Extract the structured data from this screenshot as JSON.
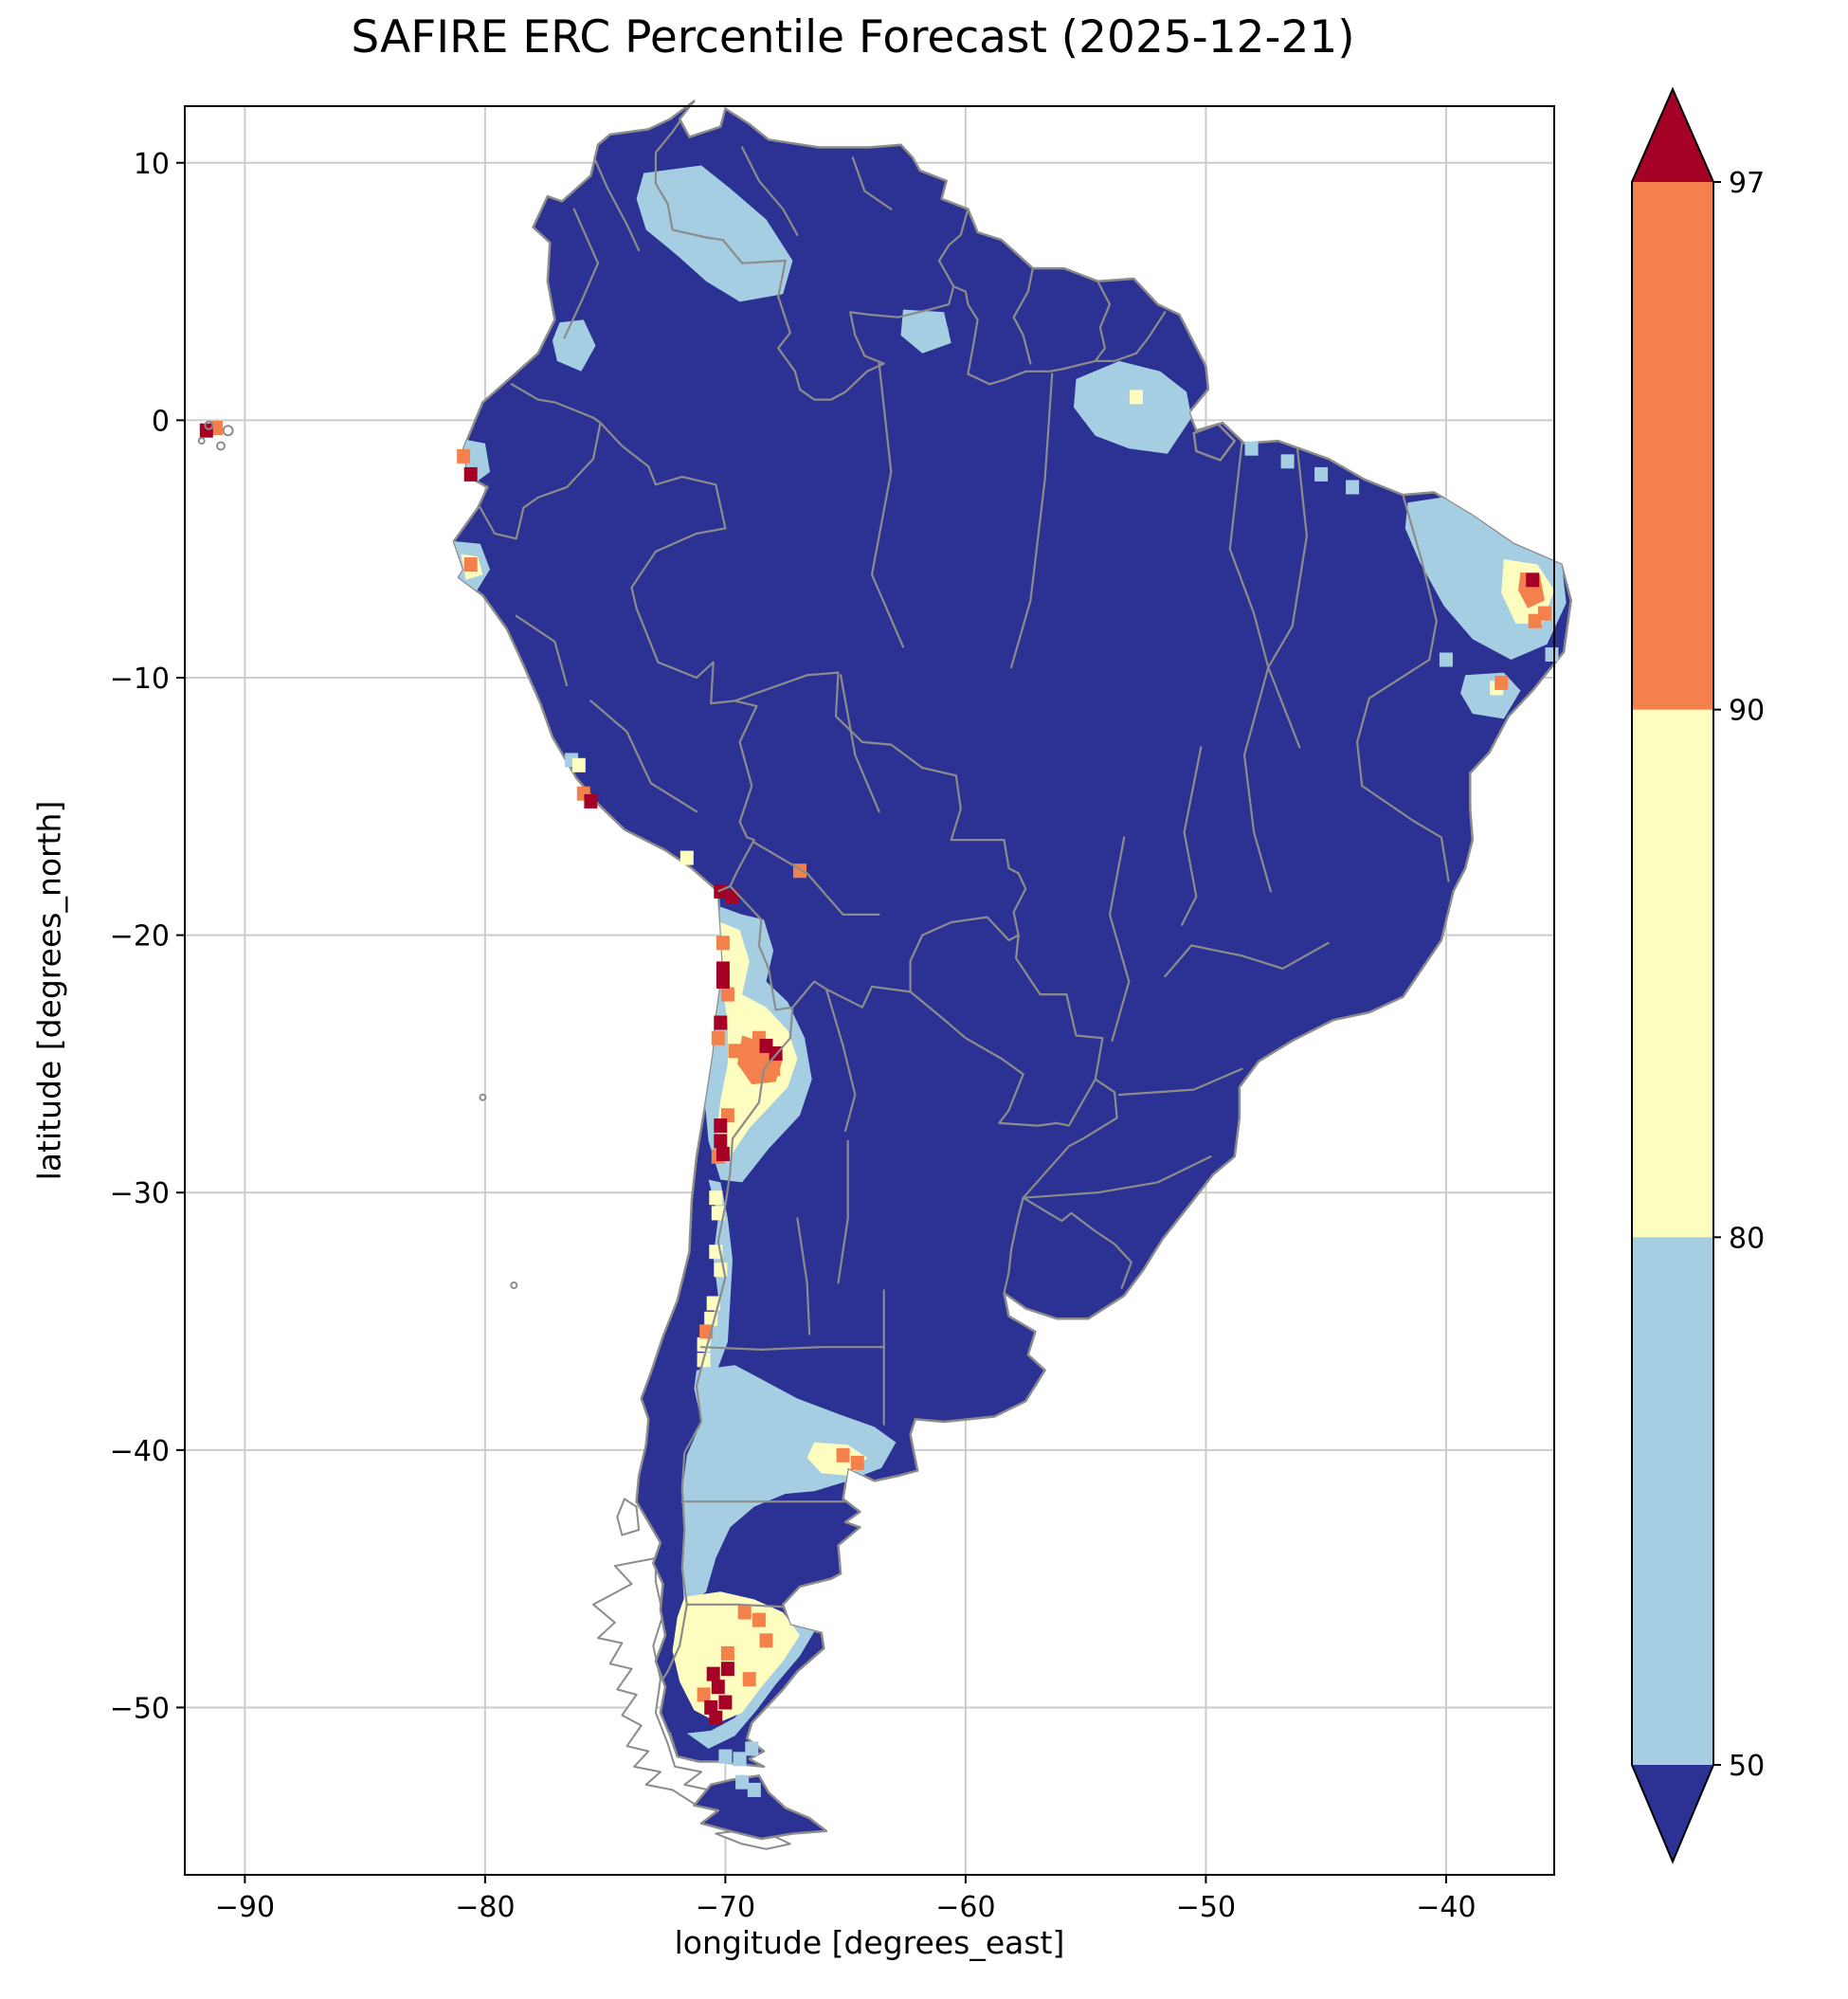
{
  "title": "SAFIRE ERC Percentile Forecast (2025-12-21)",
  "axes": {
    "xlabel": "longitude [degrees_east]",
    "ylabel": "latitude [degrees_north]",
    "x_ticks": [
      -90,
      -80,
      -70,
      -60,
      -50,
      -40
    ],
    "x_tick_labels": [
      "−90",
      "−80",
      "−70",
      "−60",
      "−50",
      "−40"
    ],
    "y_ticks": [
      10,
      0,
      -10,
      -20,
      -30,
      -40,
      -50
    ],
    "y_tick_labels": [
      "10",
      "0",
      "−10",
      "−20",
      "−30",
      "−40",
      "−50"
    ],
    "xlim": [
      -92.5,
      -35.5
    ],
    "ylim": [
      -56.5,
      12.2
    ],
    "grid": true
  },
  "colorbar": {
    "levels": [
      97,
      90,
      80,
      50
    ],
    "labels": [
      "97",
      "90",
      "80",
      "50"
    ],
    "orientation": "vertical-right",
    "extend": "both",
    "colors": {
      "over": "#a50026",
      "bin_90_97": "#f4814c",
      "bin_80_90": "#fefdc0",
      "bin_50_80": "#a6cee3",
      "under": "#2b3293"
    }
  },
  "map_colors": {
    "land": "#2b3293",
    "ocean": "#ffffff",
    "coast_border": "#8c8c8c",
    "grid": "#cccccc",
    "frame": "#000000"
  },
  "chart_data": {
    "type": "heatmap",
    "title": "SAFIRE ERC Percentile Forecast (2025-12-21)",
    "xlabel": "longitude [degrees_east]",
    "ylabel": "latitude [degrees_north]",
    "xlim": [
      -92.5,
      -35.5
    ],
    "ylim": [
      -56.5,
      12.2
    ],
    "units": "ERC percentile",
    "legend_position": "right",
    "bins": [
      {
        "range": "<50",
        "color": "#2b3293",
        "note": "below 50th percentile — most of the continent"
      },
      {
        "range": "50-80",
        "color": "#a6cee3"
      },
      {
        "range": "80-90",
        "color": "#fefdc0"
      },
      {
        "range": "90-97",
        "color": "#f4814c"
      },
      {
        "range": ">97",
        "color": "#a50026"
      }
    ],
    "regions": [
      {
        "name": "venezuela-llanos",
        "bin": "50-80",
        "polygon": [
          [
            -73.4,
            9.6
          ],
          [
            -71.0,
            9.9
          ],
          [
            -69.8,
            9.0
          ],
          [
            -68.3,
            7.8
          ],
          [
            -67.2,
            6.2
          ],
          [
            -67.6,
            4.9
          ],
          [
            -69.4,
            4.6
          ],
          [
            -70.8,
            5.4
          ],
          [
            -72.0,
            6.4
          ],
          [
            -73.3,
            7.4
          ],
          [
            -73.7,
            8.6
          ]
        ]
      },
      {
        "name": "sw-colombia",
        "bin": "50-80",
        "polygon": [
          [
            -76.9,
            3.8
          ],
          [
            -75.9,
            3.9
          ],
          [
            -75.4,
            2.9
          ],
          [
            -76.0,
            1.9
          ],
          [
            -77.0,
            2.3
          ],
          [
            -77.2,
            3.1
          ]
        ]
      },
      {
        "name": "roraima-guyana",
        "bin": "50-80",
        "polygon": [
          [
            -62.6,
            4.3
          ],
          [
            -60.9,
            4.2
          ],
          [
            -60.6,
            3.0
          ],
          [
            -61.8,
            2.6
          ],
          [
            -62.7,
            3.3
          ]
        ]
      },
      {
        "name": "amapa-amazon-mouth",
        "bin": "50-80",
        "polygon": [
          [
            -55.4,
            1.6
          ],
          [
            -53.6,
            2.3
          ],
          [
            -51.9,
            1.9
          ],
          [
            -50.8,
            1.1
          ],
          [
            -50.6,
            0.1
          ],
          [
            -51.6,
            -1.3
          ],
          [
            -53.2,
            -1.1
          ],
          [
            -54.6,
            -0.6
          ],
          [
            -55.5,
            0.5
          ]
        ]
      },
      {
        "name": "ne-brazil",
        "bin": "50-80",
        "polygon": [
          [
            -41.6,
            -3.2
          ],
          [
            -40.2,
            -3.0
          ],
          [
            -38.5,
            -3.6
          ],
          [
            -36.8,
            -4.8
          ],
          [
            -35.2,
            -5.5
          ],
          [
            -35.0,
            -7.1
          ],
          [
            -35.8,
            -8.7
          ],
          [
            -37.3,
            -9.3
          ],
          [
            -38.9,
            -8.5
          ],
          [
            -40.1,
            -7.2
          ],
          [
            -41.1,
            -5.5
          ],
          [
            -41.7,
            -4.2
          ]
        ]
      },
      {
        "name": "ne-brazil-high",
        "bin": "80-90",
        "polygon": [
          [
            -37.6,
            -5.4
          ],
          [
            -36.2,
            -5.6
          ],
          [
            -35.5,
            -6.6
          ],
          [
            -36.0,
            -7.9
          ],
          [
            -37.1,
            -7.9
          ],
          [
            -37.7,
            -6.7
          ]
        ]
      },
      {
        "name": "ne-brazil-severe",
        "bin": "90-97",
        "polygon": [
          [
            -36.9,
            -5.9
          ],
          [
            -36.1,
            -6.0
          ],
          [
            -35.9,
            -7.0
          ],
          [
            -36.6,
            -7.3
          ],
          [
            -37.0,
            -6.6
          ]
        ]
      },
      {
        "name": "sergipe-bahia",
        "bin": "50-80",
        "polygon": [
          [
            -39.2,
            -9.9
          ],
          [
            -37.6,
            -9.8
          ],
          [
            -36.9,
            -10.5
          ],
          [
            -37.6,
            -11.6
          ],
          [
            -38.9,
            -11.4
          ],
          [
            -39.4,
            -10.6
          ]
        ]
      },
      {
        "name": "ecuador-coast",
        "bin": "50-80",
        "polygon": [
          [
            -81.1,
            -0.7
          ],
          [
            -80.0,
            -0.9
          ],
          [
            -79.8,
            -2.0
          ],
          [
            -80.5,
            -2.5
          ],
          [
            -81.1,
            -1.9
          ]
        ]
      },
      {
        "name": "nw-peru-coast",
        "bin": "50-80",
        "polygon": [
          [
            -81.3,
            -4.7
          ],
          [
            -80.2,
            -4.8
          ],
          [
            -79.8,
            -5.8
          ],
          [
            -80.4,
            -6.7
          ],
          [
            -81.2,
            -6.2
          ]
        ]
      },
      {
        "name": "nw-peru-high",
        "bin": "80-90",
        "polygon": [
          [
            -81.0,
            -5.2
          ],
          [
            -80.3,
            -5.3
          ],
          [
            -80.1,
            -6.0
          ],
          [
            -80.8,
            -6.2
          ]
        ]
      },
      {
        "name": "atacama-envelope",
        "bin": "50-80",
        "polygon": [
          [
            -70.2,
            -18.9
          ],
          [
            -69.3,
            -19.2
          ],
          [
            -68.4,
            -19.4
          ],
          [
            -68.0,
            -20.6
          ],
          [
            -68.3,
            -21.8
          ],
          [
            -67.4,
            -22.6
          ],
          [
            -66.7,
            -24.0
          ],
          [
            -66.4,
            -25.6
          ],
          [
            -66.9,
            -27.0
          ],
          [
            -68.2,
            -28.3
          ],
          [
            -69.3,
            -29.6
          ],
          [
            -70.2,
            -29.5
          ],
          [
            -70.7,
            -28.0
          ],
          [
            -70.9,
            -26.0
          ],
          [
            -70.8,
            -24.0
          ],
          [
            -70.7,
            -22.0
          ],
          [
            -70.6,
            -20.2
          ]
        ]
      },
      {
        "name": "atacama-yellow",
        "bin": "80-90",
        "polygon": [
          [
            -70.2,
            -19.5
          ],
          [
            -69.4,
            -19.8
          ],
          [
            -69.0,
            -21.0
          ],
          [
            -69.3,
            -22.3
          ],
          [
            -68.3,
            -22.8
          ],
          [
            -67.4,
            -23.7
          ],
          [
            -67.0,
            -24.8
          ],
          [
            -67.4,
            -25.9
          ],
          [
            -68.2,
            -26.7
          ],
          [
            -69.0,
            -27.5
          ],
          [
            -69.8,
            -28.6
          ],
          [
            -70.4,
            -28.0
          ],
          [
            -70.2,
            -26.4
          ],
          [
            -69.9,
            -25.0
          ],
          [
            -69.9,
            -23.5
          ],
          [
            -70.1,
            -22.0
          ],
          [
            -70.3,
            -20.5
          ]
        ]
      },
      {
        "name": "atacama-orange",
        "bin": "90-97",
        "polygon": [
          [
            -69.3,
            -23.9
          ],
          [
            -68.3,
            -24.2
          ],
          [
            -67.6,
            -24.8
          ],
          [
            -67.9,
            -25.7
          ],
          [
            -68.9,
            -25.8
          ],
          [
            -69.5,
            -25.0
          ]
        ]
      },
      {
        "name": "chile-central-strip",
        "bin": "50-80",
        "polygon": [
          [
            -70.7,
            -29.5
          ],
          [
            -70.3,
            -31.0
          ],
          [
            -70.5,
            -32.5
          ],
          [
            -70.3,
            -34.0
          ],
          [
            -70.7,
            -35.5
          ],
          [
            -71.1,
            -37.0
          ],
          [
            -70.5,
            -37.3
          ],
          [
            -69.9,
            -35.8
          ],
          [
            -69.8,
            -34.2
          ],
          [
            -69.7,
            -32.6
          ],
          [
            -69.9,
            -31.0
          ],
          [
            -70.2,
            -29.6
          ]
        ]
      },
      {
        "name": "patagonia-north",
        "bin": "50-80",
        "polygon": [
          [
            -71.2,
            -36.9
          ],
          [
            -69.6,
            -36.7
          ],
          [
            -68.4,
            -37.3
          ],
          [
            -67.0,
            -38.0
          ],
          [
            -65.3,
            -38.6
          ],
          [
            -63.8,
            -39.1
          ],
          [
            -62.9,
            -39.7
          ],
          [
            -63.5,
            -40.7
          ],
          [
            -64.9,
            -41.2
          ],
          [
            -66.3,
            -41.6
          ],
          [
            -67.5,
            -41.7
          ],
          [
            -68.8,
            -42.2
          ],
          [
            -69.8,
            -43.0
          ],
          [
            -70.4,
            -44.2
          ],
          [
            -70.8,
            -45.5
          ],
          [
            -71.7,
            -46.2
          ],
          [
            -71.8,
            -44.8
          ],
          [
            -71.7,
            -43.2
          ],
          [
            -71.8,
            -41.6
          ],
          [
            -71.6,
            -40.2
          ],
          [
            -71.0,
            -38.9
          ],
          [
            -71.3,
            -37.6
          ]
        ]
      },
      {
        "name": "rio-negro-yellow",
        "bin": "80-90",
        "polygon": [
          [
            -66.3,
            -39.7
          ],
          [
            -64.9,
            -39.8
          ],
          [
            -64.1,
            -40.3
          ],
          [
            -64.8,
            -41.0
          ],
          [
            -66.0,
            -40.9
          ],
          [
            -66.6,
            -40.3
          ]
        ]
      },
      {
        "name": "patagonia-south-yellow",
        "bin": "80-90",
        "polygon": [
          [
            -71.7,
            -45.7
          ],
          [
            -70.2,
            -45.5
          ],
          [
            -68.8,
            -45.8
          ],
          [
            -67.6,
            -46.3
          ],
          [
            -66.9,
            -47.2
          ],
          [
            -67.6,
            -48.2
          ],
          [
            -68.5,
            -49.2
          ],
          [
            -69.3,
            -50.2
          ],
          [
            -70.3,
            -50.6
          ],
          [
            -71.3,
            -50.1
          ],
          [
            -71.9,
            -49.0
          ],
          [
            -72.2,
            -47.8
          ],
          [
            -72.0,
            -46.5
          ]
        ]
      },
      {
        "name": "patagonia-south-blue-fringe",
        "bin": "50-80",
        "polygon": [
          [
            -67.4,
            -46.0
          ],
          [
            -66.2,
            -46.9
          ],
          [
            -66.9,
            -48.0
          ],
          [
            -67.9,
            -49.1
          ],
          [
            -68.7,
            -50.1
          ],
          [
            -69.6,
            -51.1
          ],
          [
            -70.7,
            -51.6
          ],
          [
            -71.6,
            -51.0
          ],
          [
            -70.6,
            -50.9
          ],
          [
            -69.6,
            -50.4
          ],
          [
            -68.8,
            -49.4
          ],
          [
            -68.0,
            -48.4
          ],
          [
            -67.3,
            -47.3
          ]
        ]
      }
    ],
    "cells": {
      "97+": [
        [
          -70.2,
          -18.3
        ],
        [
          -69.7,
          -18.5
        ],
        [
          -70.1,
          -21.3
        ],
        [
          -70.1,
          -21.8
        ],
        [
          -70.2,
          -23.4
        ],
        [
          -68.3,
          -24.3
        ],
        [
          -67.9,
          -24.6
        ],
        [
          -70.2,
          -27.4
        ],
        [
          -70.2,
          -28.0
        ],
        [
          -70.1,
          -28.5
        ],
        [
          -36.4,
          -6.2
        ],
        [
          -75.6,
          -14.8
        ],
        [
          -80.6,
          -2.1
        ],
        [
          -91.6,
          -0.4
        ],
        [
          -70.5,
          -48.7
        ],
        [
          -70.3,
          -49.2
        ],
        [
          -70.0,
          -49.8
        ],
        [
          -70.6,
          -50.0
        ],
        [
          -69.9,
          -48.5
        ],
        [
          -70.4,
          -50.4
        ]
      ],
      "90-97": [
        [
          -70.1,
          -20.3
        ],
        [
          -69.9,
          -22.3
        ],
        [
          -70.3,
          -24.0
        ],
        [
          -69.6,
          -24.5
        ],
        [
          -68.6,
          -24.0
        ],
        [
          -68.0,
          -25.2
        ],
        [
          -69.9,
          -27.0
        ],
        [
          -70.3,
          -28.6
        ],
        [
          -66.9,
          -17.5
        ],
        [
          -80.9,
          -1.4
        ],
        [
          -80.6,
          -5.6
        ],
        [
          -75.9,
          -14.5
        ],
        [
          -65.1,
          -40.2
        ],
        [
          -64.5,
          -40.5
        ],
        [
          -69.2,
          -46.3
        ],
        [
          -68.6,
          -46.6
        ],
        [
          -69.9,
          -47.9
        ],
        [
          -69.0,
          -48.9
        ],
        [
          -70.9,
          -49.5
        ],
        [
          -68.3,
          -47.4
        ],
        [
          -35.9,
          -7.5
        ],
        [
          -36.3,
          -7.8
        ],
        [
          -37.7,
          -10.2
        ],
        [
          -91.2,
          -0.3
        ],
        [
          -70.8,
          -35.4
        ]
      ],
      "80-90": [
        [
          -70.4,
          -30.2
        ],
        [
          -70.3,
          -30.8
        ],
        [
          -70.4,
          -32.3
        ],
        [
          -70.2,
          -33.0
        ],
        [
          -70.5,
          -34.3
        ],
        [
          -70.6,
          -34.9
        ],
        [
          -70.9,
          -35.9
        ],
        [
          -70.9,
          -36.5
        ],
        [
          -52.9,
          0.9
        ],
        [
          -37.9,
          -10.4
        ],
        [
          -71.6,
          -17.0
        ],
        [
          -76.1,
          -13.4
        ]
      ],
      "50-80": [
        [
          -70.0,
          -51.9
        ],
        [
          -69.4,
          -52.0
        ],
        [
          -68.9,
          -51.6
        ],
        [
          -69.3,
          -52.9
        ],
        [
          -68.8,
          -53.2
        ],
        [
          -76.4,
          -13.2
        ],
        [
          -48.1,
          -1.1
        ],
        [
          -46.6,
          -1.6
        ],
        [
          -45.2,
          -2.1
        ],
        [
          -43.9,
          -2.6
        ],
        [
          -40.0,
          -9.3
        ],
        [
          -35.6,
          -9.1
        ],
        [
          -61.0,
          3.3
        ]
      ]
    }
  }
}
